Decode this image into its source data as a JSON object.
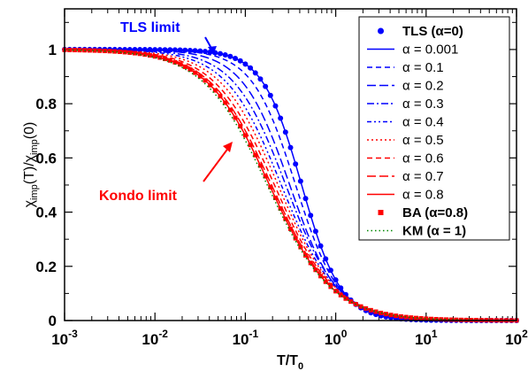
{
  "chart_data": {
    "type": "line",
    "x_scale": "log",
    "xlim": [
      0.001,
      100
    ],
    "ylim": [
      0,
      1.15
    ],
    "x_ticks": [
      0.001,
      0.01,
      0.1,
      1,
      10,
      100
    ],
    "y_ticks": [
      0,
      0.2,
      0.4,
      0.6,
      0.8,
      1
    ],
    "x_tick_labels": [
      {
        "base": "10",
        "exp": "-3"
      },
      {
        "base": "10",
        "exp": "-2"
      },
      {
        "base": "10",
        "exp": "-1"
      },
      {
        "base": "10",
        "exp": "0"
      },
      {
        "base": "10",
        "exp": "1"
      },
      {
        "base": "10",
        "exp": "2"
      }
    ],
    "y_tick_labels": [
      "0",
      "0.2",
      "0.4",
      "0.6",
      "0.8",
      "1"
    ],
    "xlabel": {
      "main": "T/T",
      "sub": "0"
    },
    "ylabel": {
      "p1": "χ",
      "s1": "imp",
      "p2": "(T)/χ",
      "s2": "imp",
      "p3": "(0)"
    },
    "legend_position": "top-right",
    "annotations": [
      {
        "text": "TLS limit",
        "color": "#0000ff"
      },
      {
        "text": "Kondo limit",
        "color": "#ff0000"
      }
    ],
    "series": [
      {
        "name": "TLS (α=0)",
        "color": "#0000ff",
        "style": "dots",
        "t_half": 0.42,
        "p": 2.0
      },
      {
        "name": "α = 0.001",
        "color": "#0000ff",
        "style": "solid",
        "t_half": 0.42,
        "p": 2.0
      },
      {
        "name": "α = 0.1",
        "color": "#0000ff",
        "style": "dash",
        "t_half": 0.36,
        "p": 1.8
      },
      {
        "name": "α = 0.2",
        "color": "#0000ff",
        "style": "longdash",
        "t_half": 0.31,
        "p": 1.65
      },
      {
        "name": "α = 0.3",
        "color": "#0000ff",
        "style": "dashdot",
        "t_half": 0.28,
        "p": 1.5
      },
      {
        "name": "α = 0.4",
        "color": "#0000ff",
        "style": "dashdot2",
        "t_half": 0.25,
        "p": 1.42
      },
      {
        "name": "α = 0.5",
        "color": "#ff0000",
        "style": "dotted",
        "t_half": 0.23,
        "p": 1.35
      },
      {
        "name": "α = 0.6",
        "color": "#ff0000",
        "style": "dash",
        "t_half": 0.21,
        "p": 1.3
      },
      {
        "name": "α = 0.7",
        "color": "#ff0000",
        "style": "longdash",
        "t_half": 0.195,
        "p": 1.27
      },
      {
        "name": "α = 0.8",
        "color": "#ff0000",
        "style": "solid",
        "t_half": 0.185,
        "p": 1.25
      },
      {
        "name": "BA (α=0.8)",
        "color": "#ff0000",
        "style": "squares",
        "t_half": 0.185,
        "p": 1.25
      },
      {
        "name": "KM (α = 1)",
        "color": "#008800",
        "style": "greendot",
        "t_half": 0.175,
        "p": 1.22
      }
    ]
  }
}
